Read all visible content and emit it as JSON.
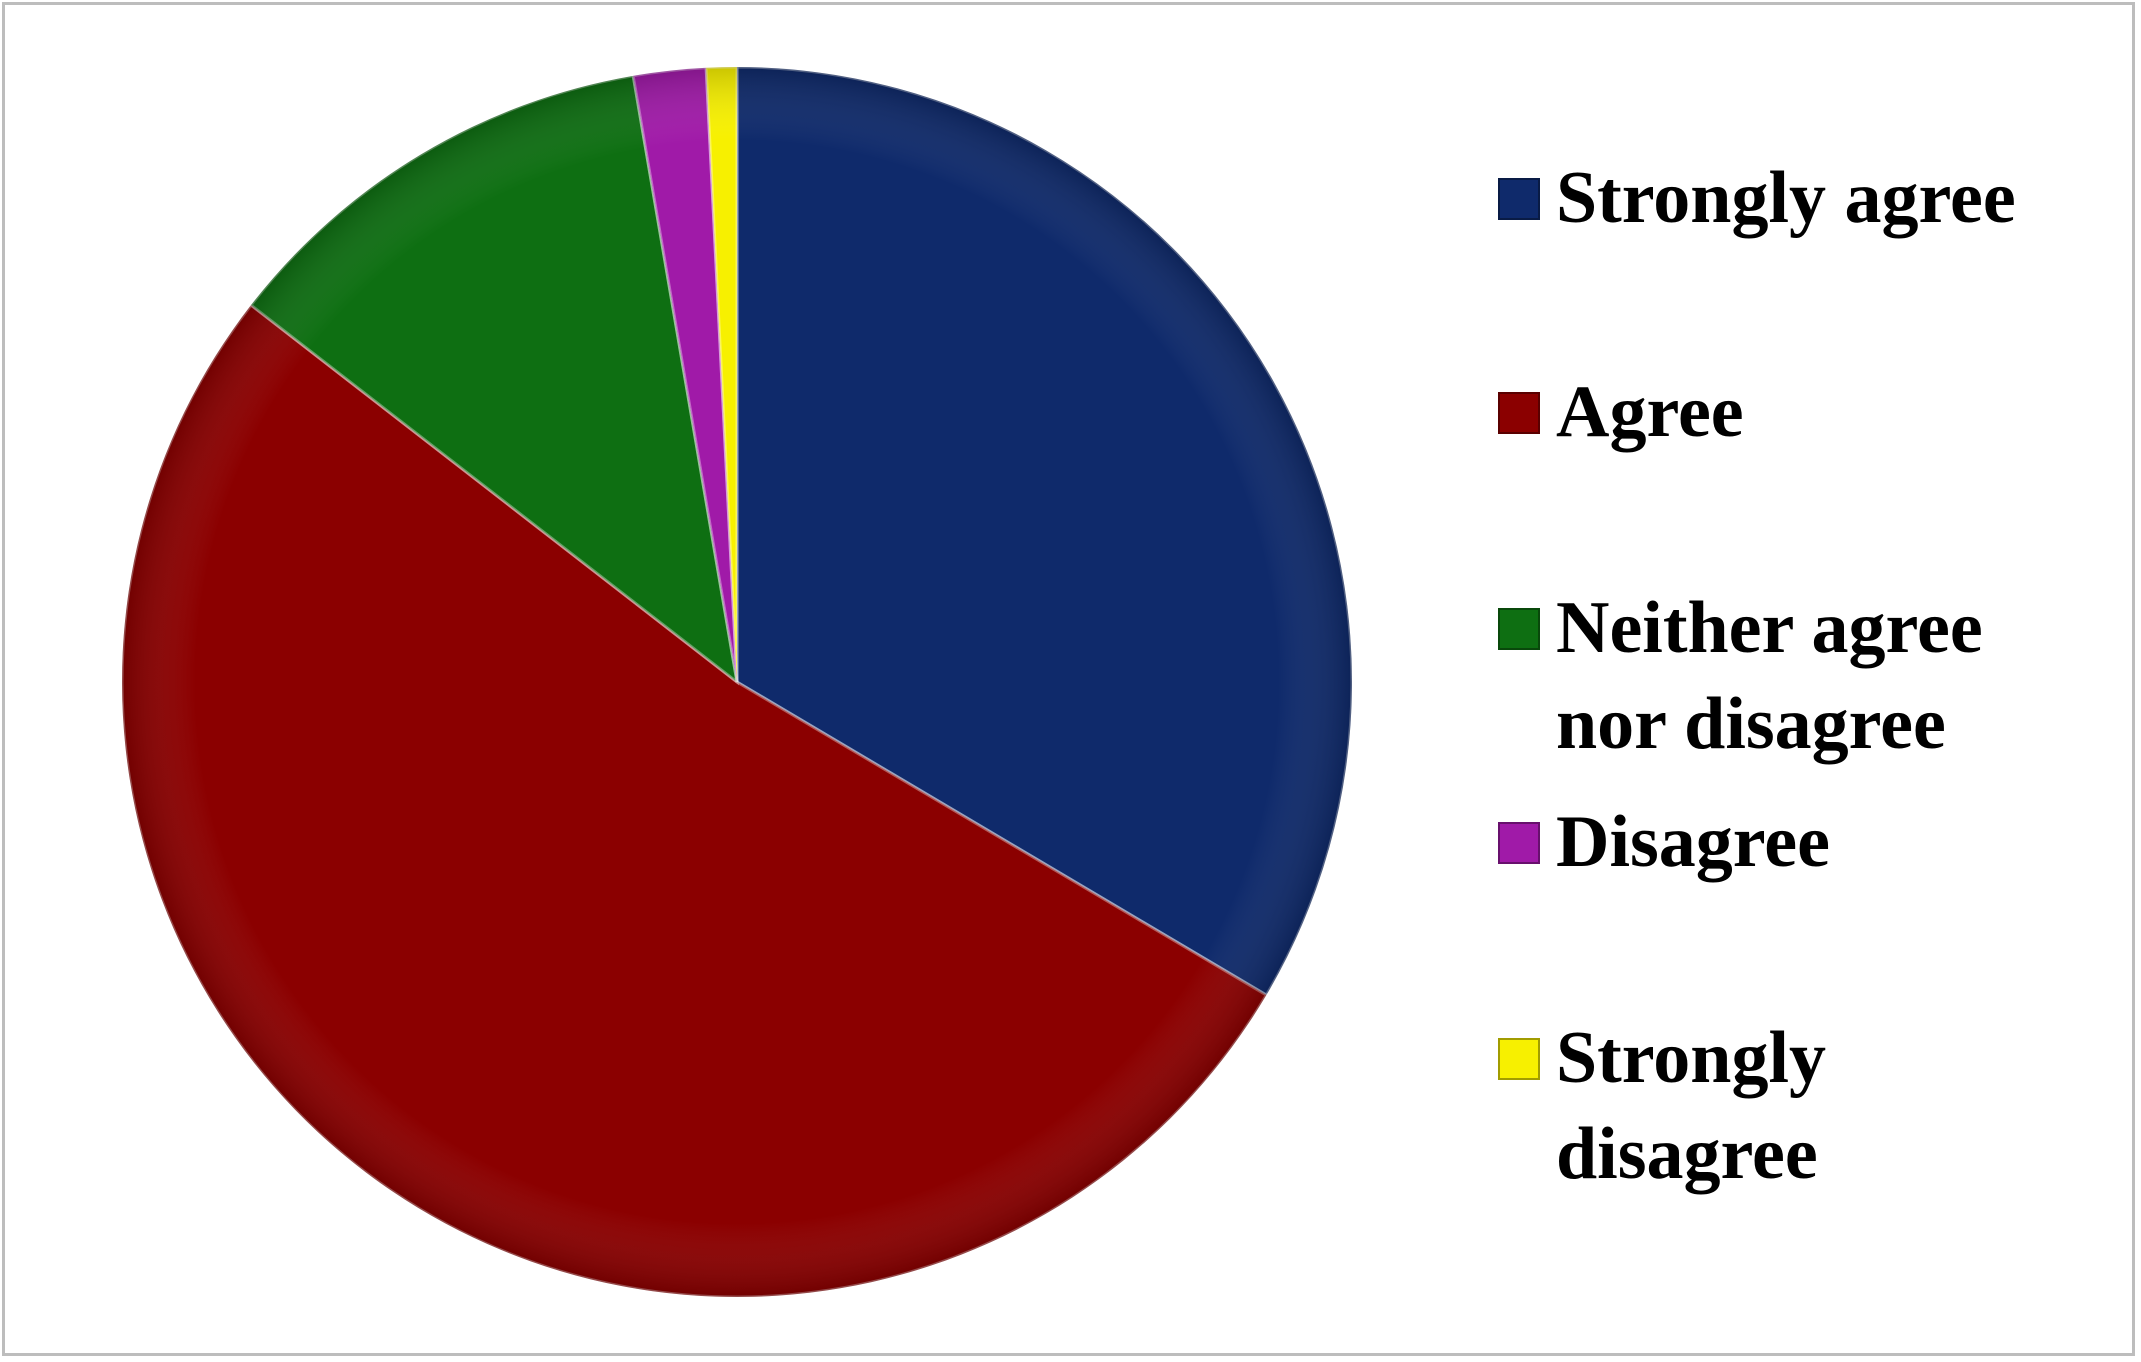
{
  "chart_data": {
    "type": "pie",
    "title": "",
    "start_angle_deg": 0,
    "direction": "clockwise",
    "legend_position": "right",
    "slices": [
      {
        "label": "Strongly agree",
        "value": 33.5,
        "color": "#0f2a6b"
      },
      {
        "label": "Agree",
        "value": 52.0,
        "color": "#8b0000"
      },
      {
        "label": "Neither agree nor disagree",
        "value": 11.8,
        "color": "#0e6f12"
      },
      {
        "label": "Disagree",
        "value": 1.9,
        "color": "#a01aa8"
      },
      {
        "label": "Strongly disagree",
        "value": 0.8,
        "color": "#f7f000"
      }
    ]
  }
}
